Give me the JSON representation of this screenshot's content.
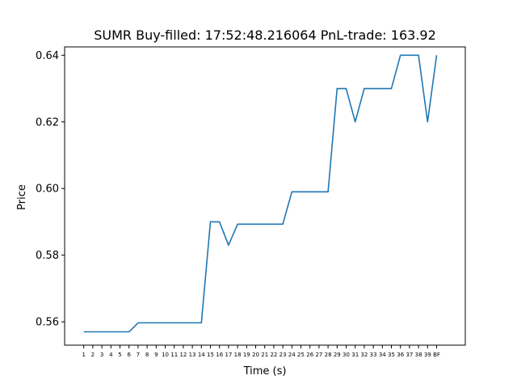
{
  "chart_data": {
    "type": "line",
    "title": "SUMR  Buy-filled:  17:52:48.216064  PnL-trade:  163.92",
    "xlabel": "Time (s)",
    "ylabel": "Price",
    "ylim": [
      0.553,
      0.6425
    ],
    "yticks": [
      0.56,
      0.58,
      0.6,
      0.62,
      0.64
    ],
    "ytick_labels": [
      "0.56",
      "0.58",
      "0.60",
      "0.62",
      "0.64"
    ],
    "grid": false,
    "legend": "none",
    "line_color": "#1f77b4",
    "categories": [
      "1",
      "2",
      "3",
      "4",
      "5",
      "6",
      "7",
      "8",
      "9",
      "10",
      "11",
      "12",
      "13",
      "14",
      "15",
      "16",
      "17",
      "18",
      "19",
      "20",
      "21",
      "22",
      "23",
      "24",
      "25",
      "26",
      "27",
      "28",
      "29",
      "30",
      "31",
      "32",
      "33",
      "34",
      "35",
      "36",
      "37",
      "38",
      "39",
      "BF"
    ],
    "values": [
      0.557,
      0.557,
      0.557,
      0.557,
      0.557,
      0.557,
      0.5597,
      0.5597,
      0.5597,
      0.5597,
      0.5597,
      0.5597,
      0.5597,
      0.5597,
      0.59,
      0.59,
      0.583,
      0.5893,
      0.5893,
      0.5893,
      0.5893,
      0.5893,
      0.5893,
      0.599,
      0.599,
      0.599,
      0.599,
      0.599,
      0.63,
      0.63,
      0.62,
      0.63,
      0.63,
      0.63,
      0.63,
      0.64,
      0.64,
      0.64,
      0.62,
      0.64
    ]
  }
}
